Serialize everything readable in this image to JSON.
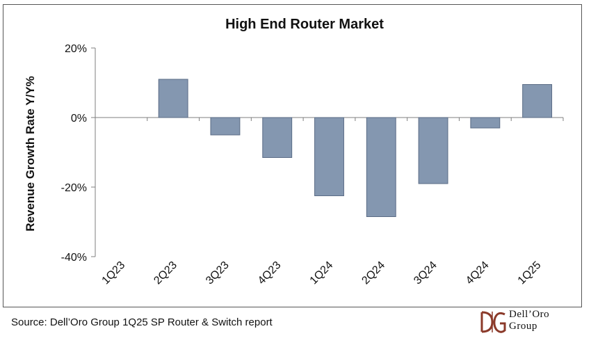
{
  "chart_data": {
    "type": "bar",
    "title": "High End Router Market",
    "ylabel": "Revenue Growth Rate Y/Y%",
    "xlabel": "",
    "categories": [
      "1Q23",
      "2Q23",
      "3Q23",
      "4Q23",
      "1Q24",
      "2Q24",
      "3Q24",
      "4Q24",
      "1Q25"
    ],
    "values": [
      0,
      11,
      -5,
      -11.5,
      -22.5,
      -28.5,
      -19,
      -3,
      9.5
    ],
    "ylim": [
      -40,
      20
    ],
    "yticks": [
      20,
      0,
      -20,
      -40
    ],
    "ytick_labels": [
      "20%",
      "0%",
      "-20%",
      "-40%"
    ],
    "grid": false,
    "bar_color": "#8497b0",
    "bar_edge_color": "#5a6b85"
  },
  "footer": {
    "source": "Source: Dell’Oro Group 1Q25 SP Router & Switch report"
  },
  "logo": {
    "line1": "Dell’Oro",
    "line2": "Group",
    "mark_color": "#8b3a2a"
  }
}
